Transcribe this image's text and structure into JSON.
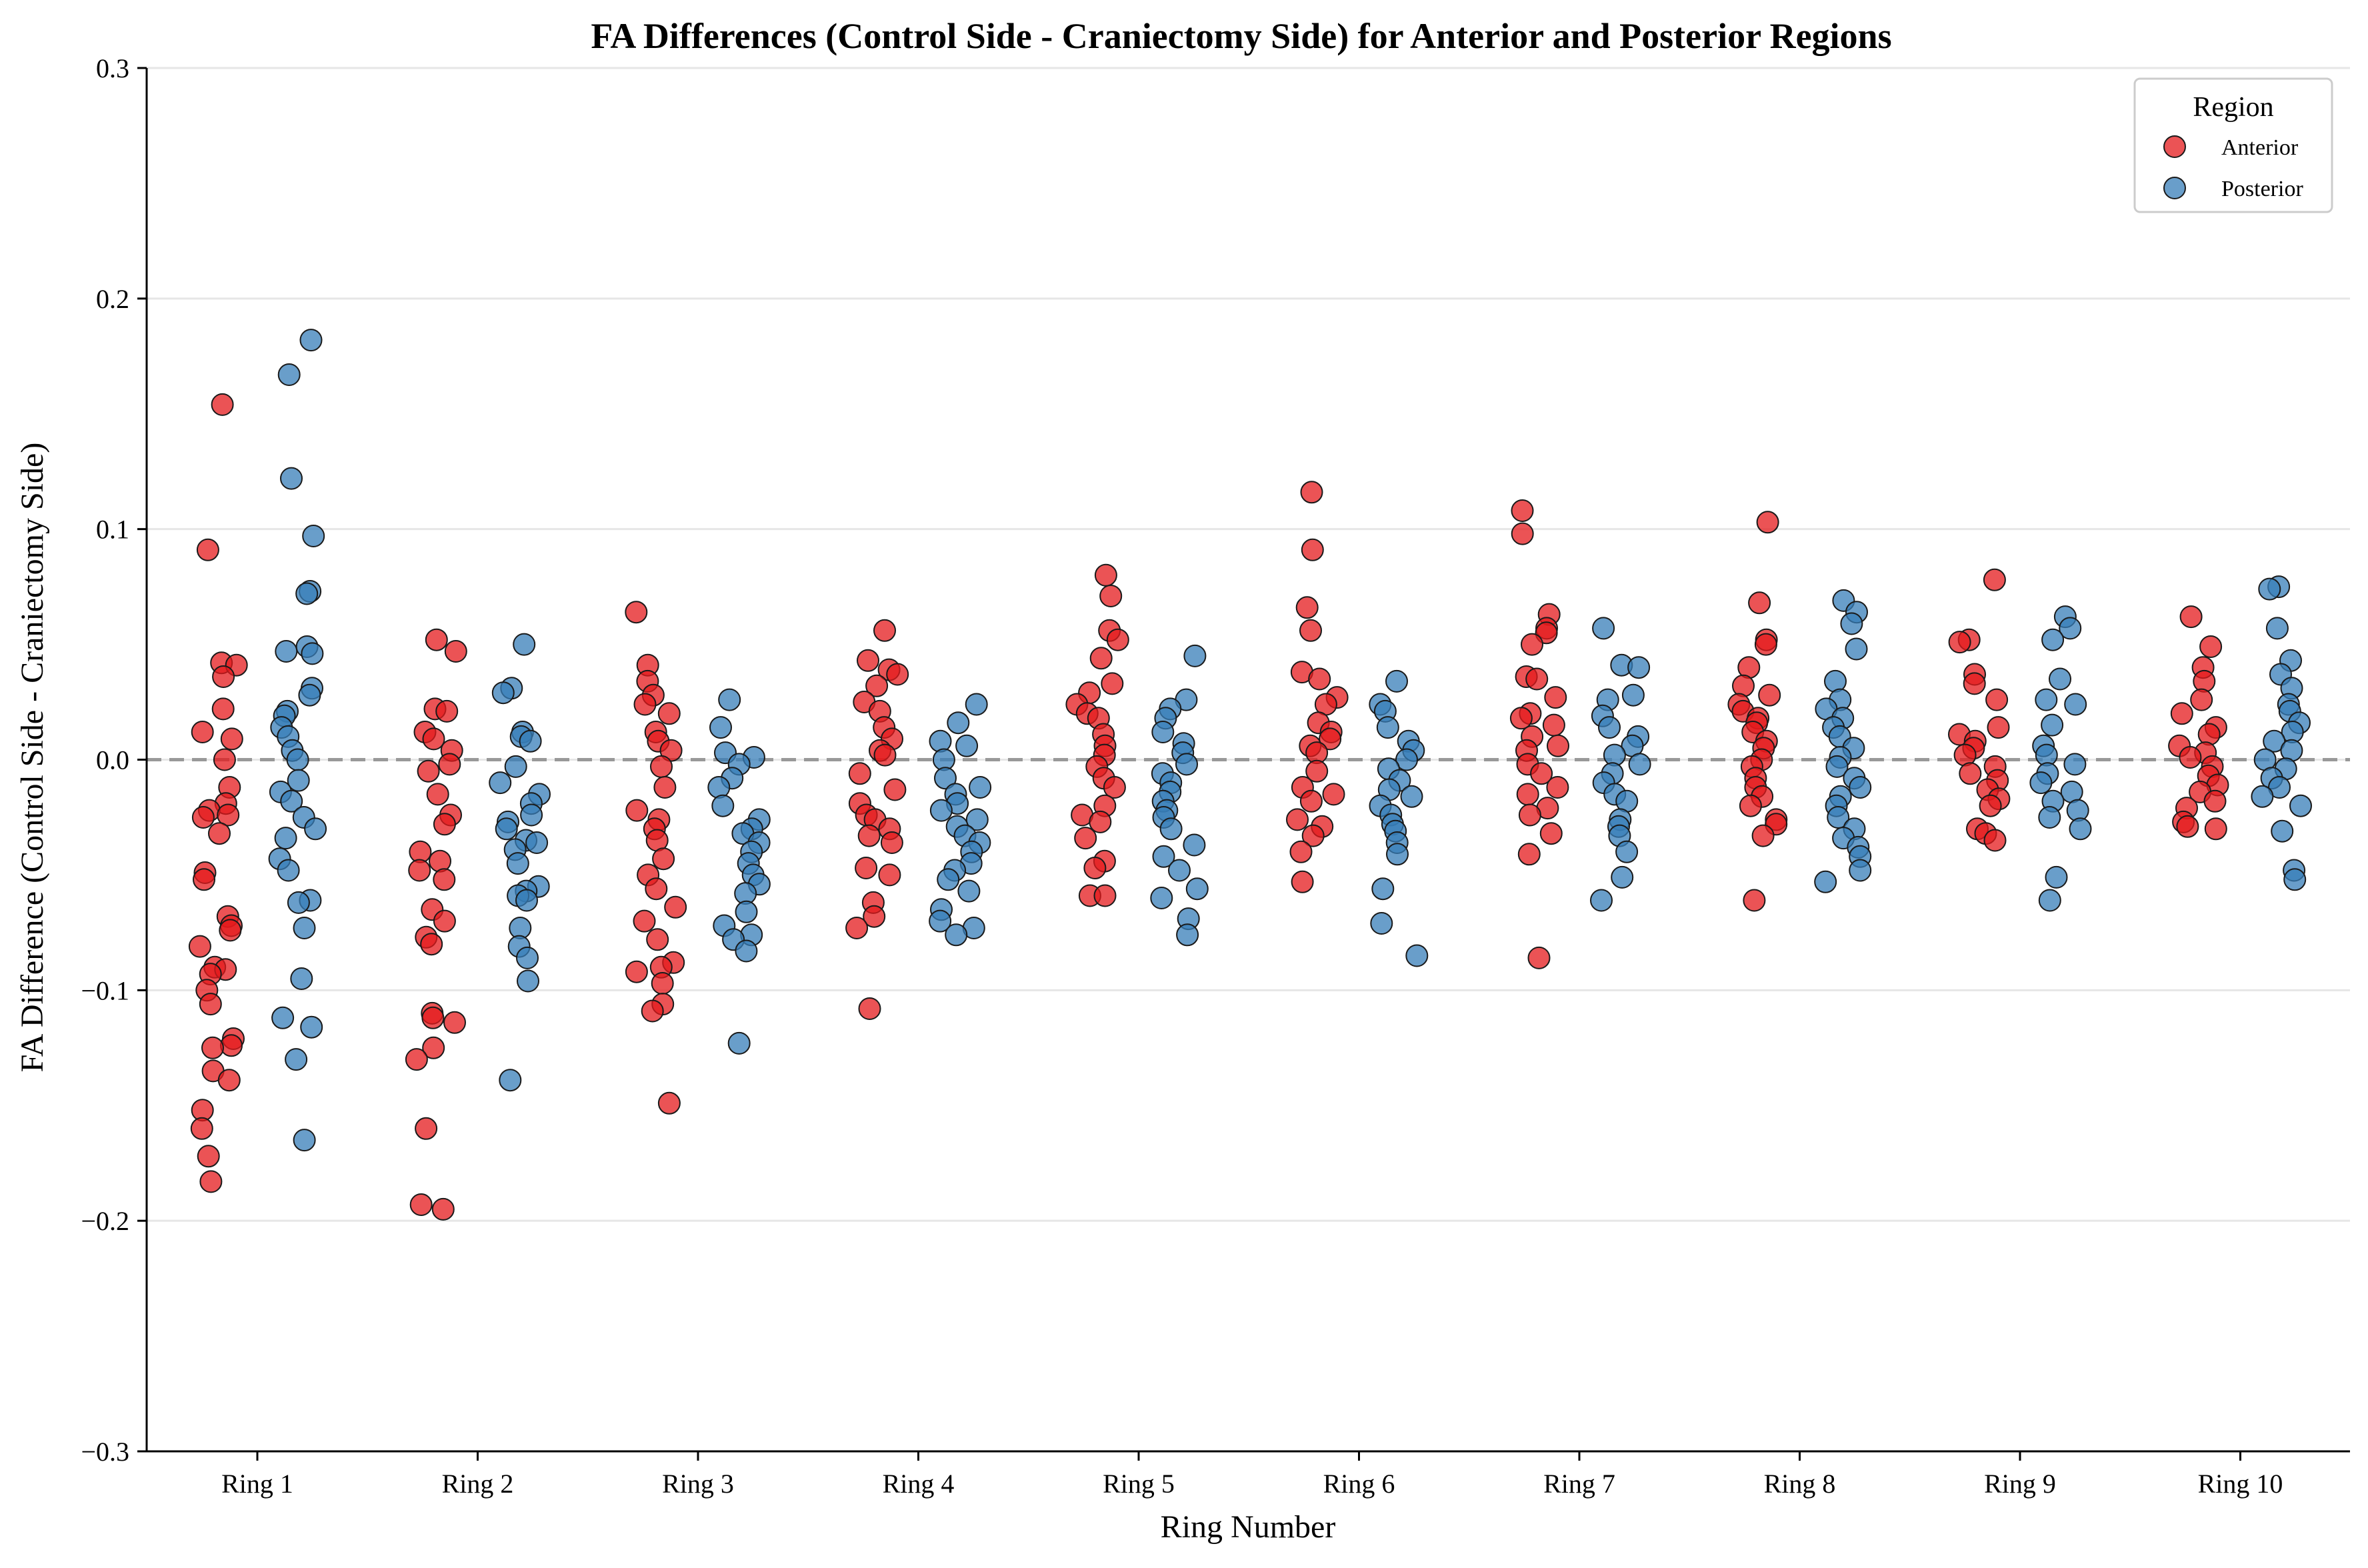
{
  "chart_data": {
    "type": "scatter",
    "title": "FA Differences (Control Side - Craniectomy Side) for Anterior and Posterior Regions",
    "xlabel": "Ring Number",
    "ylabel": "FA Difference (Control Side - Craniectomy Side)",
    "ylim": [
      -0.3,
      0.3
    ],
    "yticks": [
      -0.3,
      -0.2,
      -0.1,
      0.0,
      0.1,
      0.2,
      0.3
    ],
    "ytick_labels": [
      "−0.3",
      "−0.2",
      "−0.1",
      "0.0",
      "0.1",
      "0.2",
      "0.3"
    ],
    "categories": [
      "Ring 1",
      "Ring 2",
      "Ring 3",
      "Ring 4",
      "Ring 5",
      "Ring 6",
      "Ring 7",
      "Ring 8",
      "Ring 9",
      "Ring 10"
    ],
    "grid": "horizontal",
    "reference_line": 0.0,
    "legend": {
      "title": "Region",
      "position": "top-right"
    },
    "series": [
      {
        "name": "Anterior",
        "color": "#e41a1c",
        "values": [
          [
            0.154,
            0.091,
            0.042,
            0.041,
            0.036,
            0.022,
            0.012,
            0.009,
            0.0,
            -0.012,
            -0.019,
            -0.022,
            -0.024,
            -0.025,
            -0.032,
            -0.049,
            -0.052,
            -0.068,
            -0.072,
            -0.074,
            -0.081,
            -0.09,
            -0.091,
            -0.093,
            -0.1,
            -0.106,
            -0.121,
            -0.124,
            -0.125,
            -0.135,
            -0.139,
            -0.152,
            -0.16,
            -0.172,
            -0.183
          ],
          [
            0.052,
            0.047,
            0.022,
            0.021,
            0.012,
            0.009,
            0.004,
            -0.002,
            -0.005,
            -0.015,
            -0.024,
            -0.028,
            -0.04,
            -0.044,
            -0.048,
            -0.052,
            -0.065,
            -0.07,
            -0.077,
            -0.08,
            -0.11,
            -0.112,
            -0.114,
            -0.125,
            -0.13,
            -0.16,
            -0.193,
            -0.195
          ],
          [
            0.064,
            0.041,
            0.034,
            0.028,
            0.024,
            0.02,
            0.012,
            0.008,
            0.004,
            -0.003,
            -0.012,
            -0.022,
            -0.026,
            -0.03,
            -0.035,
            -0.043,
            -0.05,
            -0.056,
            -0.064,
            -0.07,
            -0.078,
            -0.088,
            -0.09,
            -0.092,
            -0.097,
            -0.106,
            -0.109,
            -0.149
          ],
          [
            0.056,
            0.043,
            0.039,
            0.037,
            0.032,
            0.025,
            0.021,
            0.014,
            0.009,
            0.004,
            0.002,
            -0.006,
            -0.013,
            -0.019,
            -0.024,
            -0.026,
            -0.03,
            -0.033,
            -0.036,
            -0.047,
            -0.05,
            -0.062,
            -0.068,
            -0.073,
            -0.108
          ],
          [
            0.08,
            0.071,
            0.056,
            0.052,
            0.044,
            0.033,
            0.029,
            0.024,
            0.02,
            0.018,
            0.011,
            0.006,
            0.002,
            -0.003,
            -0.008,
            -0.012,
            -0.02,
            -0.024,
            -0.027,
            -0.034,
            -0.044,
            -0.047,
            -0.059,
            -0.059
          ],
          [
            0.116,
            0.091,
            0.066,
            0.056,
            0.038,
            0.035,
            0.027,
            0.024,
            0.016,
            0.012,
            0.009,
            0.006,
            0.003,
            -0.005,
            -0.012,
            -0.015,
            -0.018,
            -0.026,
            -0.029,
            -0.033,
            -0.04,
            -0.053
          ],
          [
            0.108,
            0.098,
            0.063,
            0.057,
            0.055,
            0.05,
            0.036,
            0.035,
            0.027,
            0.02,
            0.018,
            0.015,
            0.01,
            0.006,
            0.004,
            -0.002,
            -0.006,
            -0.012,
            -0.015,
            -0.021,
            -0.024,
            -0.032,
            -0.041,
            -0.086
          ],
          [
            0.103,
            0.068,
            0.052,
            0.05,
            0.04,
            0.032,
            0.028,
            0.024,
            0.021,
            0.018,
            0.016,
            0.012,
            0.008,
            0.005,
            0.0,
            -0.003,
            -0.008,
            -0.012,
            -0.016,
            -0.02,
            -0.026,
            -0.028,
            -0.033,
            -0.061
          ],
          [
            0.078,
            0.052,
            0.051,
            0.037,
            0.033,
            0.026,
            0.014,
            0.011,
            0.008,
            0.005,
            0.002,
            -0.003,
            -0.006,
            -0.009,
            -0.013,
            -0.017,
            -0.02,
            -0.03,
            -0.032,
            -0.035
          ],
          [
            0.062,
            0.049,
            0.04,
            0.034,
            0.026,
            0.02,
            0.014,
            0.011,
            0.006,
            0.003,
            0.001,
            -0.003,
            -0.007,
            -0.011,
            -0.014,
            -0.018,
            -0.021,
            -0.027,
            -0.029,
            -0.03
          ]
        ]
      },
      {
        "name": "Posterior",
        "color": "#377eb8",
        "values": [
          [
            0.182,
            0.167,
            0.122,
            0.097,
            0.073,
            0.072,
            0.049,
            0.047,
            0.046,
            0.031,
            0.028,
            0.021,
            0.019,
            0.014,
            0.01,
            0.004,
            0.0,
            -0.009,
            -0.014,
            -0.018,
            -0.025,
            -0.03,
            -0.034,
            -0.043,
            -0.048,
            -0.061,
            -0.062,
            -0.073,
            -0.095,
            -0.112,
            -0.116,
            -0.13,
            -0.165
          ],
          [
            0.05,
            0.031,
            0.029,
            0.012,
            0.01,
            0.008,
            -0.003,
            -0.01,
            -0.015,
            -0.019,
            -0.024,
            -0.027,
            -0.03,
            -0.035,
            -0.036,
            -0.039,
            -0.045,
            -0.055,
            -0.057,
            -0.059,
            -0.061,
            -0.073,
            -0.081,
            -0.086,
            -0.096,
            -0.139
          ],
          [
            0.026,
            0.014,
            0.003,
            0.001,
            -0.002,
            -0.008,
            -0.012,
            -0.02,
            -0.026,
            -0.03,
            -0.032,
            -0.036,
            -0.04,
            -0.045,
            -0.05,
            -0.054,
            -0.058,
            -0.066,
            -0.072,
            -0.076,
            -0.078,
            -0.083,
            -0.123
          ],
          [
            0.024,
            0.016,
            0.008,
            0.006,
            0.0,
            -0.008,
            -0.012,
            -0.015,
            -0.019,
            -0.022,
            -0.026,
            -0.029,
            -0.033,
            -0.036,
            -0.04,
            -0.045,
            -0.048,
            -0.052,
            -0.057,
            -0.065,
            -0.07,
            -0.073,
            -0.076
          ],
          [
            0.045,
            0.026,
            0.022,
            0.018,
            0.012,
            0.007,
            0.003,
            -0.002,
            -0.006,
            -0.01,
            -0.014,
            -0.018,
            -0.022,
            -0.025,
            -0.03,
            -0.037,
            -0.042,
            -0.048,
            -0.056,
            -0.06,
            -0.069,
            -0.076
          ],
          [
            0.034,
            0.024,
            0.021,
            0.014,
            0.008,
            0.004,
            0.0,
            -0.004,
            -0.009,
            -0.013,
            -0.016,
            -0.02,
            -0.024,
            -0.028,
            -0.031,
            -0.036,
            -0.041,
            -0.056,
            -0.071,
            -0.085
          ],
          [
            0.057,
            0.041,
            0.04,
            0.028,
            0.026,
            0.019,
            0.014,
            0.01,
            0.006,
            0.002,
            -0.002,
            -0.006,
            -0.01,
            -0.015,
            -0.018,
            -0.026,
            -0.029,
            -0.033,
            -0.04,
            -0.051,
            -0.061
          ],
          [
            0.069,
            0.064,
            0.059,
            0.048,
            0.034,
            0.026,
            0.022,
            0.018,
            0.014,
            0.01,
            0.005,
            0.001,
            -0.003,
            -0.008,
            -0.012,
            -0.016,
            -0.02,
            -0.025,
            -0.03,
            -0.034,
            -0.038,
            -0.042,
            -0.048,
            -0.053
          ],
          [
            0.062,
            0.057,
            0.052,
            0.035,
            0.026,
            0.024,
            0.015,
            0.006,
            0.002,
            -0.002,
            -0.006,
            -0.01,
            -0.014,
            -0.018,
            -0.022,
            -0.025,
            -0.03,
            -0.051,
            -0.061
          ],
          [
            0.075,
            0.074,
            0.057,
            0.043,
            0.037,
            0.031,
            0.024,
            0.021,
            0.016,
            0.012,
            0.008,
            0.004,
            0.0,
            -0.004,
            -0.008,
            -0.012,
            -0.016,
            -0.02,
            -0.031,
            -0.048,
            -0.052
          ]
        ]
      }
    ]
  }
}
